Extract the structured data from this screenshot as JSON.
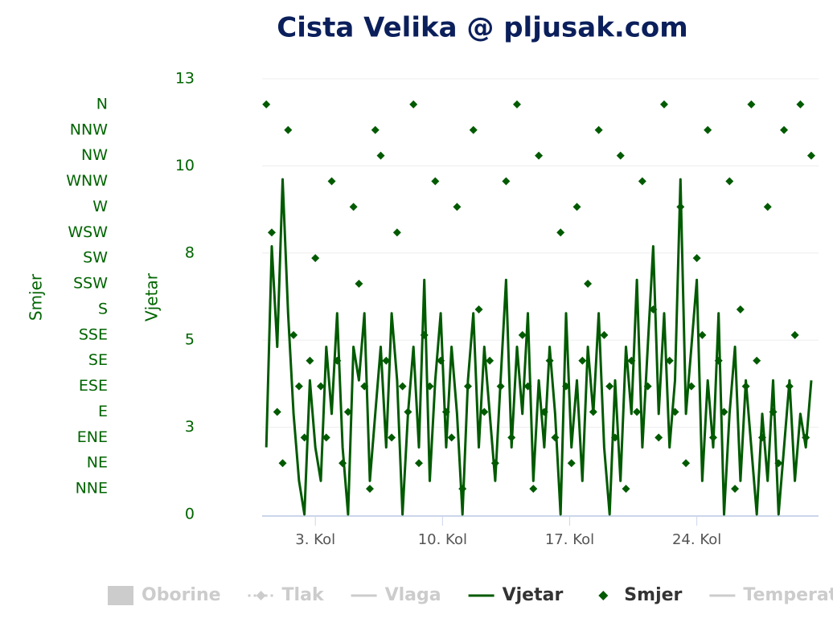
{
  "chart_data": {
    "type": "line",
    "title": "Cista Velika @ pljusak.com",
    "x": [
      0.3,
      0.6,
      0.9,
      1.2,
      1.5,
      1.8,
      2.1,
      2.4,
      2.7,
      3.0,
      3.3,
      3.6,
      3.9,
      4.2,
      4.5,
      4.8,
      5.1,
      5.4,
      5.7,
      6.0,
      6.3,
      6.6,
      6.9,
      7.2,
      7.5,
      7.8,
      8.1,
      8.4,
      8.7,
      9.0,
      9.3,
      9.6,
      9.9,
      10.2,
      10.5,
      10.8,
      11.1,
      11.4,
      11.7,
      12.0,
      12.3,
      12.6,
      12.9,
      13.2,
      13.5,
      13.8,
      14.1,
      14.4,
      14.7,
      15.0,
      15.3,
      15.6,
      15.9,
      16.2,
      16.5,
      16.8,
      17.1,
      17.4,
      17.7,
      18.0,
      18.3,
      18.6,
      18.9,
      19.2,
      19.5,
      19.8,
      20.1,
      20.4,
      20.7,
      21.0,
      21.3,
      21.6,
      21.9,
      22.2,
      22.5,
      22.8,
      23.1,
      23.4,
      23.7,
      24.0,
      24.3,
      24.6,
      24.9,
      25.2,
      25.5,
      25.8,
      26.1,
      26.4,
      26.7,
      27.0,
      27.3,
      27.6,
      27.9,
      28.2,
      28.5,
      28.8,
      29.1,
      29.4,
      29.7,
      30.0,
      30.3
    ],
    "xlim": [
      0.07,
      30.7
    ],
    "xticks": [
      {
        "value": 3,
        "label": "3. Kol"
      },
      {
        "value": 10,
        "label": "10. Kol"
      },
      {
        "value": 17,
        "label": "17. Kol"
      },
      {
        "value": 24,
        "label": "24. Kol"
      }
    ],
    "y_label": "Vjetar",
    "ylim": [
      0,
      13
    ],
    "yticks": [
      0,
      {
        "value": 2.6,
        "label": "3"
      },
      {
        "value": 5.2,
        "label": "5"
      },
      {
        "value": 7.8,
        "label": "8"
      },
      {
        "value": 10.4,
        "label": "10"
      },
      13
    ],
    "y2_label": "Smjer",
    "y2lim": [
      0,
      17
    ],
    "y2ticks": [
      {
        "value": 1,
        "label": "NNE"
      },
      {
        "value": 2,
        "label": "NE"
      },
      {
        "value": 3,
        "label": "ENE"
      },
      {
        "value": 4,
        "label": "E"
      },
      {
        "value": 5,
        "label": "ESE"
      },
      {
        "value": 6,
        "label": "SE"
      },
      {
        "value": 7,
        "label": "SSE"
      },
      {
        "value": 8,
        "label": "S"
      },
      {
        "value": 9,
        "label": "SSW"
      },
      {
        "value": 10,
        "label": "SW"
      },
      {
        "value": 11,
        "label": "WSW"
      },
      {
        "value": 12,
        "label": "W"
      },
      {
        "value": 13,
        "label": "WNW"
      },
      {
        "value": 14,
        "label": "NW"
      },
      {
        "value": 15,
        "label": "NNW"
      },
      {
        "value": 16,
        "label": "N"
      }
    ],
    "grid": true,
    "series": [
      {
        "name": "Oborine",
        "kind": "column",
        "visible": false
      },
      {
        "name": "Tlak",
        "kind": "dashed-marker",
        "visible": false
      },
      {
        "name": "Vlaga",
        "kind": "line",
        "visible": false
      },
      {
        "name": "Vjetar",
        "kind": "line",
        "visible": true,
        "color": "#005a00",
        "values": [
          2,
          8,
          5,
          10,
          6,
          3,
          1,
          0,
          4,
          2,
          1,
          5,
          3,
          6,
          2,
          0,
          5,
          4,
          6,
          1,
          3,
          5,
          2,
          6,
          4,
          0,
          3,
          5,
          2,
          7,
          1,
          4,
          6,
          2,
          5,
          3,
          0,
          4,
          6,
          2,
          5,
          3,
          1,
          4,
          7,
          2,
          5,
          3,
          6,
          1,
          4,
          2,
          5,
          3,
          0,
          6,
          2,
          4,
          1,
          5,
          3,
          6,
          2,
          0,
          4,
          1,
          5,
          3,
          7,
          2,
          5,
          8,
          3,
          6,
          2,
          4,
          10,
          3,
          5,
          7,
          1,
          4,
          2,
          6,
          0,
          3,
          5,
          1,
          4,
          2,
          0,
          3,
          1,
          4,
          0,
          2,
          4,
          1,
          3,
          2,
          4
        ]
      },
      {
        "name": "Smjer",
        "kind": "scatter",
        "visible": true,
        "color": "#005a00",
        "axis": "y2",
        "values": [
          16,
          11,
          4,
          2,
          15,
          7,
          5,
          3,
          6,
          10,
          5,
          3,
          13,
          6,
          2,
          4,
          12,
          9,
          5,
          1,
          15,
          14,
          6,
          3,
          11,
          5,
          4,
          16,
          2,
          7,
          5,
          13,
          6,
          4,
          3,
          12,
          1,
          5,
          15,
          8,
          4,
          6,
          2,
          5,
          13,
          3,
          16,
          7,
          5,
          1,
          14,
          4,
          6,
          3,
          11,
          5,
          2,
          12,
          6,
          9,
          4,
          15,
          7,
          5,
          3,
          14,
          1,
          6,
          4,
          13,
          5,
          8,
          3,
          16,
          6,
          4,
          12,
          2,
          5,
          10,
          7,
          15,
          3,
          6,
          4,
          13,
          1,
          8,
          5,
          16,
          6,
          3,
          12,
          4,
          2,
          15,
          5,
          7,
          16,
          3,
          14
        ]
      },
      {
        "name": "Temperatura",
        "kind": "line",
        "visible": false
      }
    ]
  }
}
